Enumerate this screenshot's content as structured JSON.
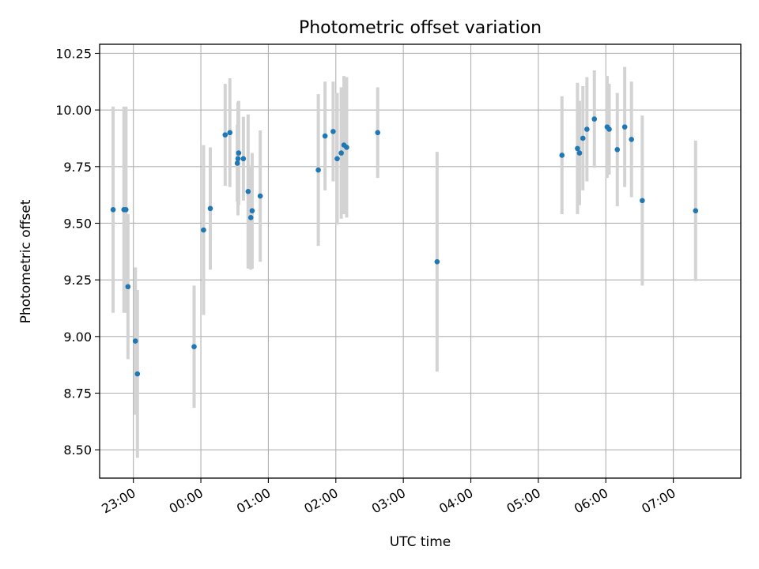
{
  "chart_data": {
    "type": "scatter",
    "title": "Photometric offset variation",
    "xlabel": "UTC time",
    "ylabel": "Photometric offset",
    "x_unit": "hours since 00:00 UTC",
    "xlim": [
      -1.5,
      8.0
    ],
    "ylim": [
      8.375,
      10.29
    ],
    "xticks": [
      {
        "value": -1,
        "label": "23:00"
      },
      {
        "value": 0,
        "label": "00:00"
      },
      {
        "value": 1,
        "label": "01:00"
      },
      {
        "value": 2,
        "label": "02:00"
      },
      {
        "value": 3,
        "label": "03:00"
      },
      {
        "value": 4,
        "label": "04:00"
      },
      {
        "value": 5,
        "label": "05:00"
      },
      {
        "value": 6,
        "label": "06:00"
      },
      {
        "value": 7,
        "label": "07:00"
      }
    ],
    "yticks": [
      {
        "value": 8.5,
        "label": "8.50"
      },
      {
        "value": 8.75,
        "label": "8.75"
      },
      {
        "value": 9.0,
        "label": "9.00"
      },
      {
        "value": 9.25,
        "label": "9.25"
      },
      {
        "value": 9.5,
        "label": "9.50"
      },
      {
        "value": 9.75,
        "label": "9.75"
      },
      {
        "value": 10.0,
        "label": "10.00"
      },
      {
        "value": 10.25,
        "label": "10.25"
      }
    ],
    "grid": true,
    "x_tick_rotation_deg": 30,
    "colors": {
      "point": "#1f77b4",
      "errorbar": "#d3d3d3",
      "grid": "#b0b0b0"
    },
    "points": [
      {
        "x": -1.3,
        "y": 9.56,
        "err": 0.455
      },
      {
        "x": -1.14,
        "y": 9.56,
        "err": 0.455
      },
      {
        "x": -1.11,
        "y": 9.56,
        "err": 0.455
      },
      {
        "x": -1.08,
        "y": 9.22,
        "err": 0.32
      },
      {
        "x": -0.97,
        "y": 8.98,
        "err": 0.325
      },
      {
        "x": -0.94,
        "y": 8.835,
        "err": 0.37
      },
      {
        "x": -0.1,
        "y": 8.955,
        "err": 0.27
      },
      {
        "x": 0.04,
        "y": 9.47,
        "err": 0.375
      },
      {
        "x": 0.14,
        "y": 9.565,
        "err": 0.27
      },
      {
        "x": 0.36,
        "y": 9.89,
        "err": 0.225
      },
      {
        "x": 0.43,
        "y": 9.9,
        "err": 0.24
      },
      {
        "x": 0.54,
        "y": 9.765,
        "err": 0.17
      },
      {
        "x": 0.55,
        "y": 9.785,
        "err": 0.25
      },
      {
        "x": 0.56,
        "y": 9.81,
        "err": 0.23
      },
      {
        "x": 0.63,
        "y": 9.785,
        "err": 0.185
      },
      {
        "x": 0.7,
        "y": 9.64,
        "err": 0.34
      },
      {
        "x": 0.74,
        "y": 9.525,
        "err": 0.23
      },
      {
        "x": 0.76,
        "y": 9.555,
        "err": 0.255
      },
      {
        "x": 0.88,
        "y": 9.62,
        "err": 0.29
      },
      {
        "x": 1.74,
        "y": 9.735,
        "err": 0.335
      },
      {
        "x": 1.84,
        "y": 9.885,
        "err": 0.24
      },
      {
        "x": 1.96,
        "y": 9.905,
        "err": 0.22
      },
      {
        "x": 2.02,
        "y": 9.785,
        "err": 0.29
      },
      {
        "x": 2.08,
        "y": 9.81,
        "err": 0.29
      },
      {
        "x": 2.12,
        "y": 9.845,
        "err": 0.305
      },
      {
        "x": 2.16,
        "y": 9.835,
        "err": 0.31
      },
      {
        "x": 2.62,
        "y": 9.9,
        "err": 0.2
      },
      {
        "x": 3.5,
        "y": 9.33,
        "err": 0.485
      },
      {
        "x": 5.35,
        "y": 9.8,
        "err": 0.26
      },
      {
        "x": 5.58,
        "y": 9.83,
        "err": 0.29
      },
      {
        "x": 5.61,
        "y": 9.81,
        "err": 0.23
      },
      {
        "x": 5.66,
        "y": 9.875,
        "err": 0.23
      },
      {
        "x": 5.72,
        "y": 9.915,
        "err": 0.23
      },
      {
        "x": 5.83,
        "y": 9.96,
        "err": 0.215
      },
      {
        "x": 6.02,
        "y": 9.925,
        "err": 0.225
      },
      {
        "x": 6.05,
        "y": 9.915,
        "err": 0.2
      },
      {
        "x": 6.17,
        "y": 9.825,
        "err": 0.25
      },
      {
        "x": 6.28,
        "y": 9.925,
        "err": 0.265
      },
      {
        "x": 6.38,
        "y": 9.87,
        "err": 0.255
      },
      {
        "x": 6.54,
        "y": 9.6,
        "err": 0.375
      },
      {
        "x": 7.33,
        "y": 9.555,
        "err": 0.31
      }
    ]
  }
}
